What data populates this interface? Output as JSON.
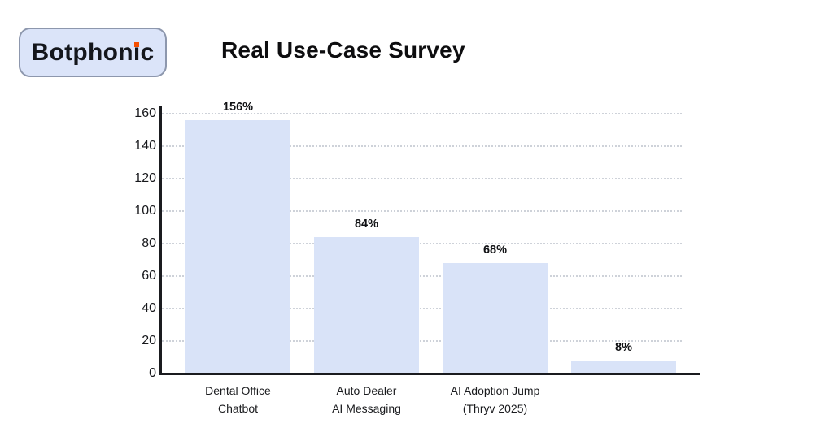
{
  "brand": {
    "name": "Botphonic",
    "pre": "Botphon",
    "i_char": "ı",
    "post": "c",
    "accent_color": "#f54e00",
    "box_bg": "#dbe4f9",
    "box_border": "#8d97ad"
  },
  "title": "Real Use-Case Survey",
  "chart_data": {
    "type": "bar",
    "title": "Real Use-Case Survey",
    "categories": [
      "Dental Office\nChatbot",
      "Auto Dealer\nAI Messaging",
      "AI Adoption Jump\n(Thryv 2025)",
      ""
    ],
    "values": [
      156,
      84,
      68,
      8
    ],
    "value_labels": [
      "156%",
      "84%",
      "68%",
      "8%"
    ],
    "ylabel": "",
    "xlabel": "",
    "ylim": [
      0,
      160
    ],
    "yticks": [
      0,
      20,
      40,
      60,
      80,
      100,
      120,
      140,
      160
    ],
    "grid": "horizontal dotted",
    "legend": false,
    "bar_color": "#d9e3f8",
    "axis_color": "#1a1b1f",
    "gridline_color": "#ced2d9",
    "label_color": "#1b1c1f"
  }
}
